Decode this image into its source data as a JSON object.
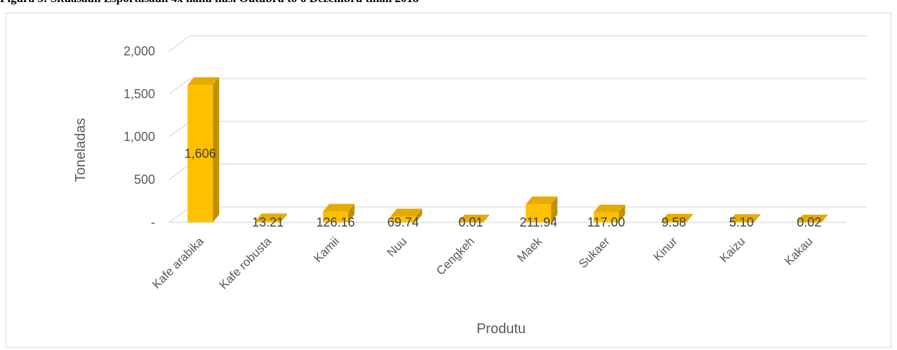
{
  "caption": "Figura 5: Situasaun Esportasaun 4x hahu husi Outubru to'o Dezembru tinan 2018",
  "colors": {
    "bar_front": "#ffc000",
    "bar_top": "#e6ab00",
    "bar_side": "#bf9000",
    "grid": "#d9d9d9"
  },
  "chart_data": {
    "type": "bar",
    "categories": [
      "Kafe arabika",
      "Kafe robusta",
      "Kamii",
      "Nuu",
      "Cengkeh",
      "Maek",
      "Sukaer",
      "Kinur",
      "Kaizu",
      "Kakau"
    ],
    "values": [
      1606,
      13.21,
      126.16,
      69.74,
      0.01,
      211.94,
      117.0,
      9.58,
      5.1,
      0.02
    ],
    "data_labels": [
      "1,606",
      "13.21",
      "126.16",
      "69.74",
      "0.01",
      "211.94",
      "117.00",
      "9.58",
      "5.10",
      "0.02"
    ],
    "xlabel": "Produtu",
    "ylabel": "Toneladas",
    "ylim": [
      0,
      2000
    ],
    "yticks": [
      0,
      500,
      1000,
      1500,
      2000
    ],
    "ytick_labels": [
      "-",
      "500",
      "1,000",
      "1,500",
      "2,000"
    ],
    "grid": true,
    "style": "3d-column"
  }
}
